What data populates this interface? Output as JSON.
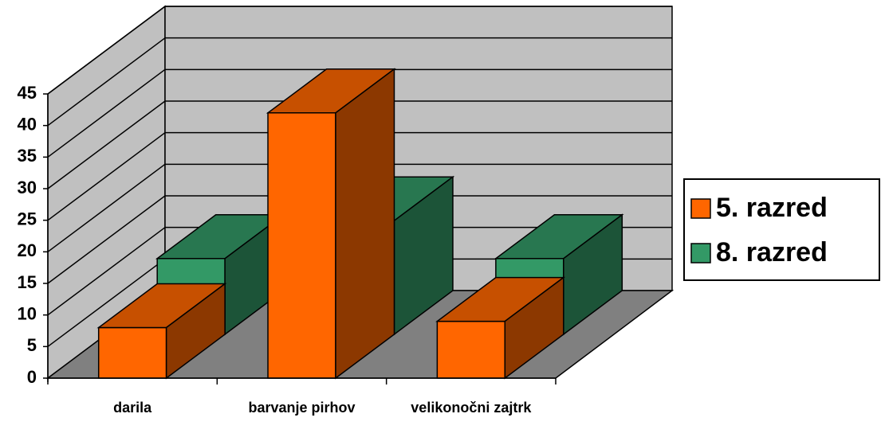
{
  "chart_data": {
    "type": "bar3d",
    "categories": [
      "darila",
      "barvanje pirhov",
      "velikonočni zajtrk"
    ],
    "series": [
      {
        "name": "5. razred",
        "color": "#ff6600",
        "values": [
          8,
          42,
          9
        ]
      },
      {
        "name": "8. razred",
        "color": "#339966",
        "values": [
          12,
          18,
          12
        ]
      }
    ],
    "ylim": [
      0,
      45
    ],
    "yticks": [
      0,
      5,
      10,
      15,
      20,
      25,
      30,
      35,
      40,
      45
    ],
    "grid": true,
    "legend": "right"
  }
}
